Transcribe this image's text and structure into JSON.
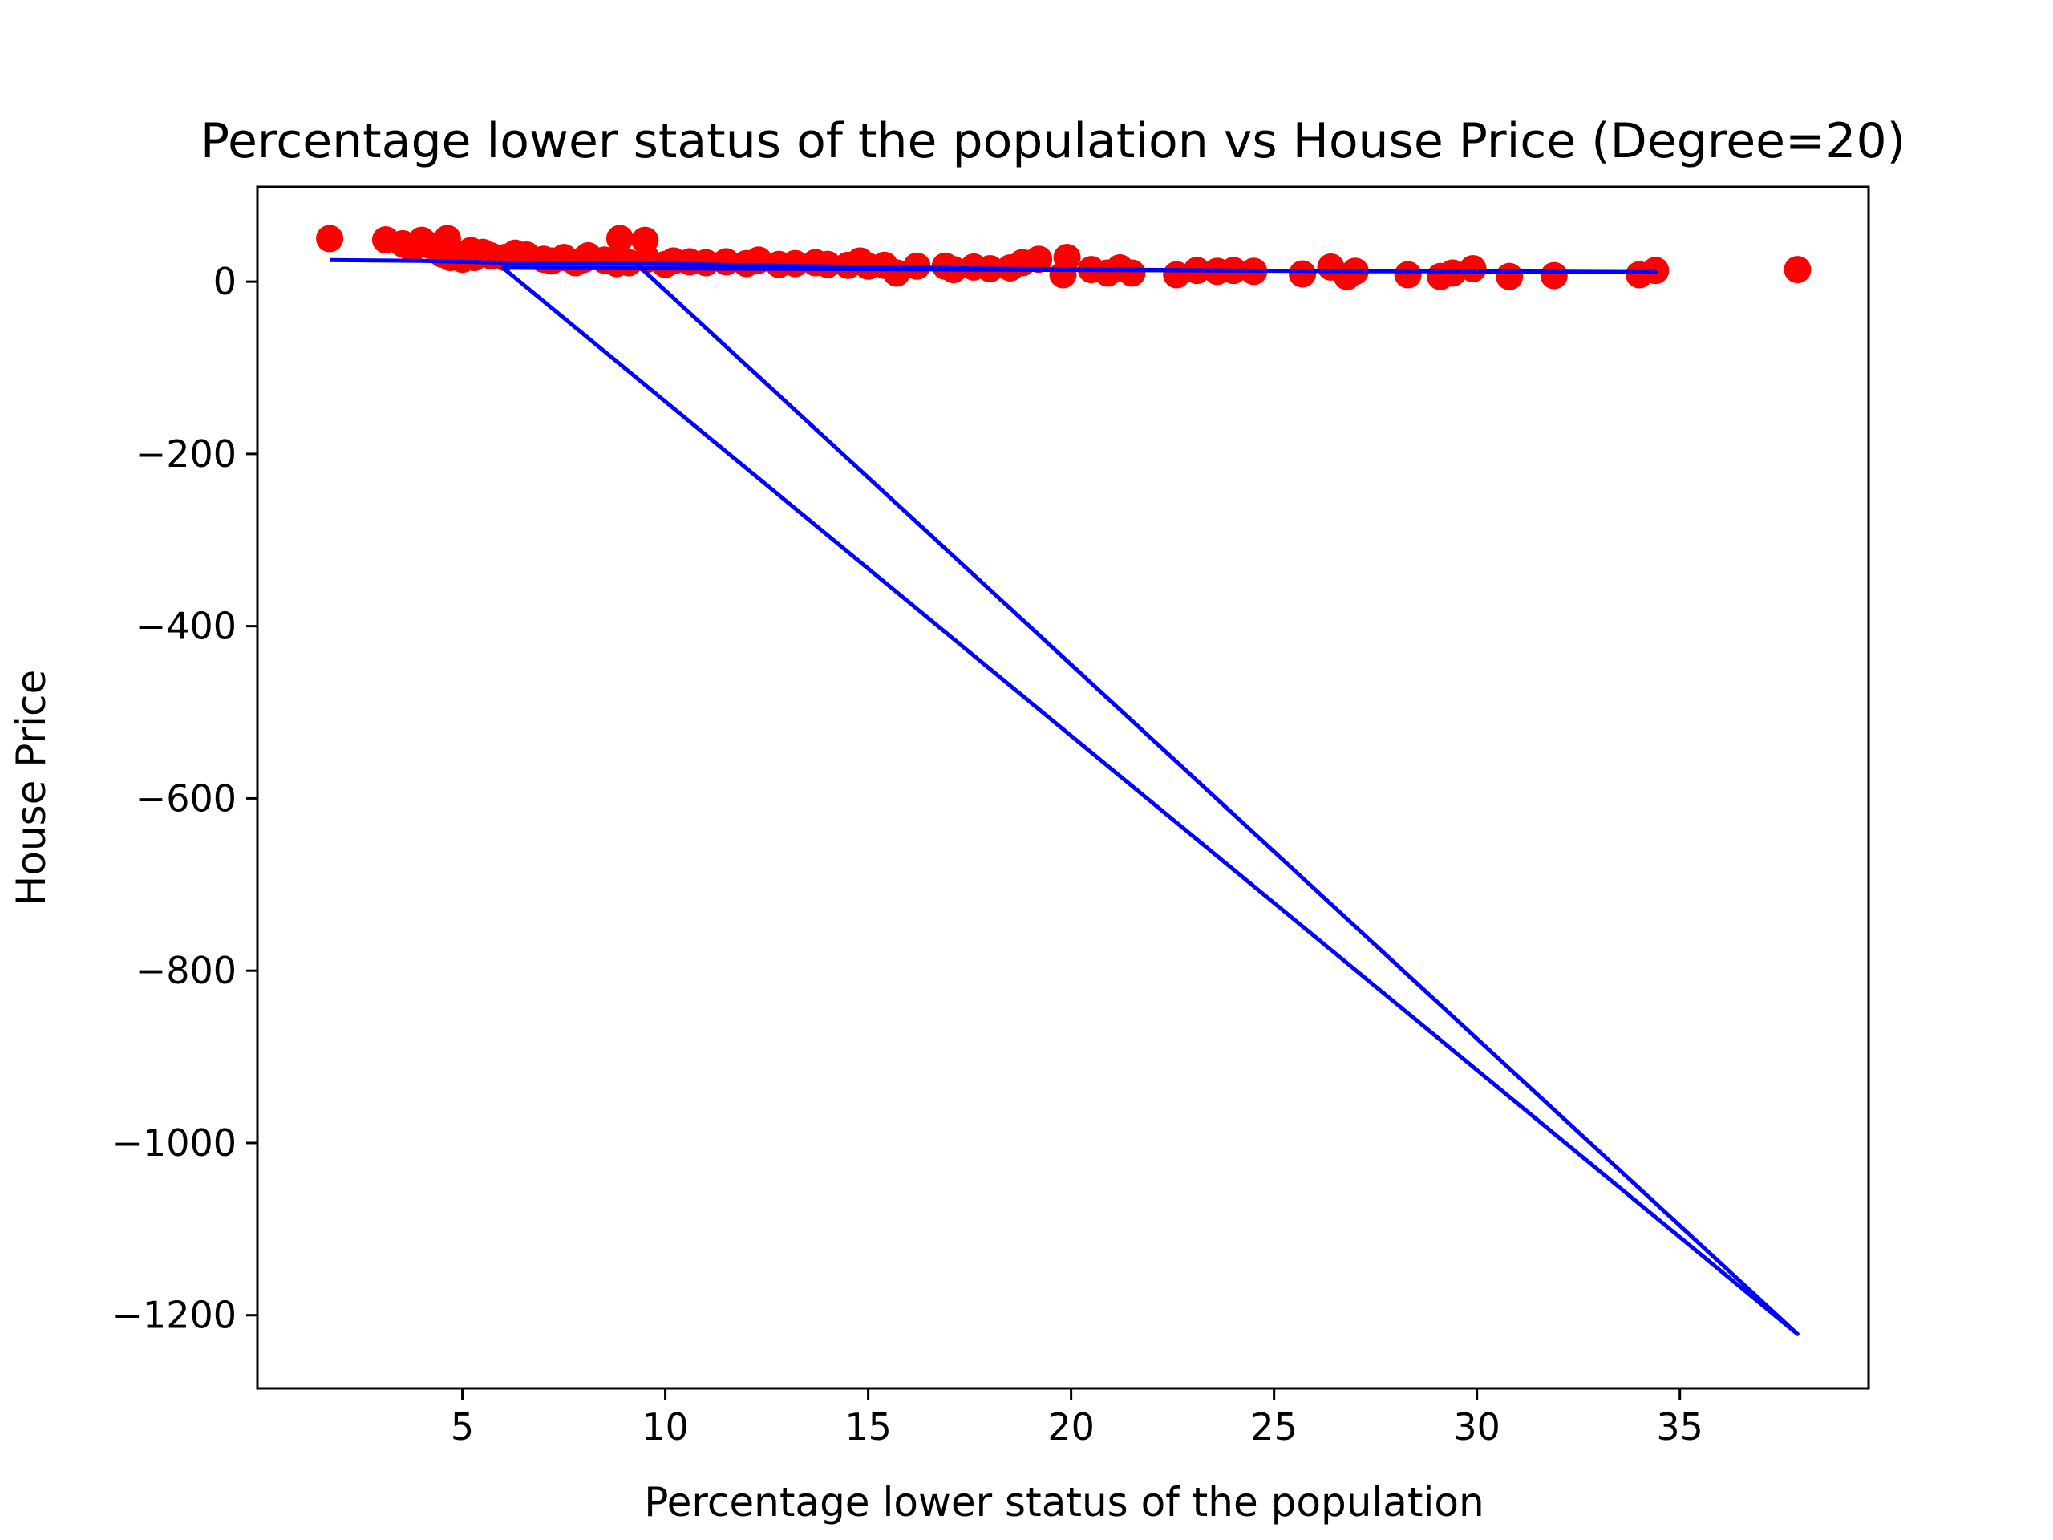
{
  "chart_data": {
    "type": "scatter",
    "title": "Percentage lower status of the population vs House Price (Degree=20)",
    "xlabel": "Percentage lower status of the population",
    "ylabel": "House Price",
    "xlim": [
      -0.05,
      39.65
    ],
    "ylim": [
      -1285,
      110
    ],
    "x_ticks": [
      5,
      10,
      15,
      20,
      25,
      30,
      35
    ],
    "y_ticks": [
      0,
      -200,
      -400,
      -600,
      -800,
      -1000,
      -1200
    ],
    "x_tick_labels": [
      "5",
      "10",
      "15",
      "20",
      "25",
      "30",
      "35"
    ],
    "y_tick_labels": [
      "0",
      "−200",
      "−400",
      "−600",
      "−800",
      "−1000",
      "−1200"
    ],
    "grid": false,
    "colors": {
      "points": "#ff0000",
      "fit_line": "#0000ff"
    },
    "series": [
      {
        "kind": "scatter",
        "points": [
          [
            1.73,
            50.0
          ],
          [
            3.11,
            48.5
          ],
          [
            3.53,
            44.0
          ],
          [
            3.76,
            38.0
          ],
          [
            4.0,
            48.0
          ],
          [
            4.03,
            44.0
          ],
          [
            4.21,
            42.0
          ],
          [
            4.5,
            32.0
          ],
          [
            4.56,
            36.0
          ],
          [
            4.63,
            50.0
          ],
          [
            4.7,
            28.0
          ],
          [
            4.82,
            33.0
          ],
          [
            5.0,
            26.0
          ],
          [
            5.21,
            36.0
          ],
          [
            5.29,
            28.0
          ],
          [
            5.5,
            34.0
          ],
          [
            5.7,
            30.0
          ],
          [
            6.05,
            28.0
          ],
          [
            6.3,
            33.0
          ],
          [
            6.58,
            31.0
          ],
          [
            7.0,
            26.0
          ],
          [
            7.2,
            24.0
          ],
          [
            7.5,
            28.0
          ],
          [
            7.79,
            22.0
          ],
          [
            8.0,
            26.0
          ],
          [
            8.1,
            30.0
          ],
          [
            8.5,
            25.0
          ],
          [
            8.8,
            21.0
          ],
          [
            8.88,
            50.0
          ],
          [
            9.1,
            22.0
          ],
          [
            9.5,
            48.0
          ],
          [
            9.55,
            26.0
          ],
          [
            10.0,
            20.0
          ],
          [
            10.2,
            24.0
          ],
          [
            10.6,
            23.0
          ],
          [
            11.0,
            22.0
          ],
          [
            11.5,
            23.0
          ],
          [
            12.0,
            21.0
          ],
          [
            12.3,
            25.0
          ],
          [
            12.8,
            20.0
          ],
          [
            13.2,
            21.0
          ],
          [
            13.7,
            22.0
          ],
          [
            14.0,
            20.0
          ],
          [
            14.5,
            19.0
          ],
          [
            14.8,
            24.0
          ],
          [
            15.0,
            18.0
          ],
          [
            15.4,
            19.0
          ],
          [
            15.7,
            10.0
          ],
          [
            16.2,
            18.0
          ],
          [
            16.9,
            18.0
          ],
          [
            17.1,
            14.0
          ],
          [
            17.6,
            17.0
          ],
          [
            18.0,
            15.0
          ],
          [
            18.5,
            16.0
          ],
          [
            18.8,
            22.0
          ],
          [
            19.2,
            26.0
          ],
          [
            19.8,
            8.0
          ],
          [
            19.9,
            28.0
          ],
          [
            20.5,
            14.0
          ],
          [
            20.9,
            10.0
          ],
          [
            21.2,
            16.0
          ],
          [
            21.5,
            10.0
          ],
          [
            22.6,
            8.0
          ],
          [
            23.1,
            13.0
          ],
          [
            23.6,
            12.0
          ],
          [
            24.0,
            13.0
          ],
          [
            24.5,
            12.0
          ],
          [
            25.7,
            9.0
          ],
          [
            26.4,
            17.0
          ],
          [
            26.8,
            6.0
          ],
          [
            27.0,
            12.0
          ],
          [
            28.3,
            8.0
          ],
          [
            29.1,
            6.0
          ],
          [
            29.4,
            10.0
          ],
          [
            29.9,
            15.0
          ],
          [
            30.8,
            6.0
          ],
          [
            31.9,
            7.0
          ],
          [
            34.0,
            8.0
          ],
          [
            34.4,
            13.0
          ],
          [
            37.9,
            14.0
          ]
        ]
      },
      {
        "kind": "line",
        "points": [
          [
            1.73,
            25.0
          ],
          [
            4.0,
            24.0
          ],
          [
            6.0,
            22.0
          ],
          [
            8.0,
            22.0
          ],
          [
            9.5,
            21.0
          ],
          [
            12.0,
            19.0
          ],
          [
            15.0,
            17.0
          ],
          [
            18.0,
            15.0
          ],
          [
            21.0,
            14.0
          ],
          [
            24.0,
            13.0
          ],
          [
            27.0,
            12.0
          ],
          [
            30.0,
            12.0
          ],
          [
            34.4,
            11.0
          ],
          [
            6.0,
            16.0
          ],
          [
            37.9,
            -1222.0
          ],
          [
            9.3,
            20.0
          ]
        ]
      }
    ]
  }
}
